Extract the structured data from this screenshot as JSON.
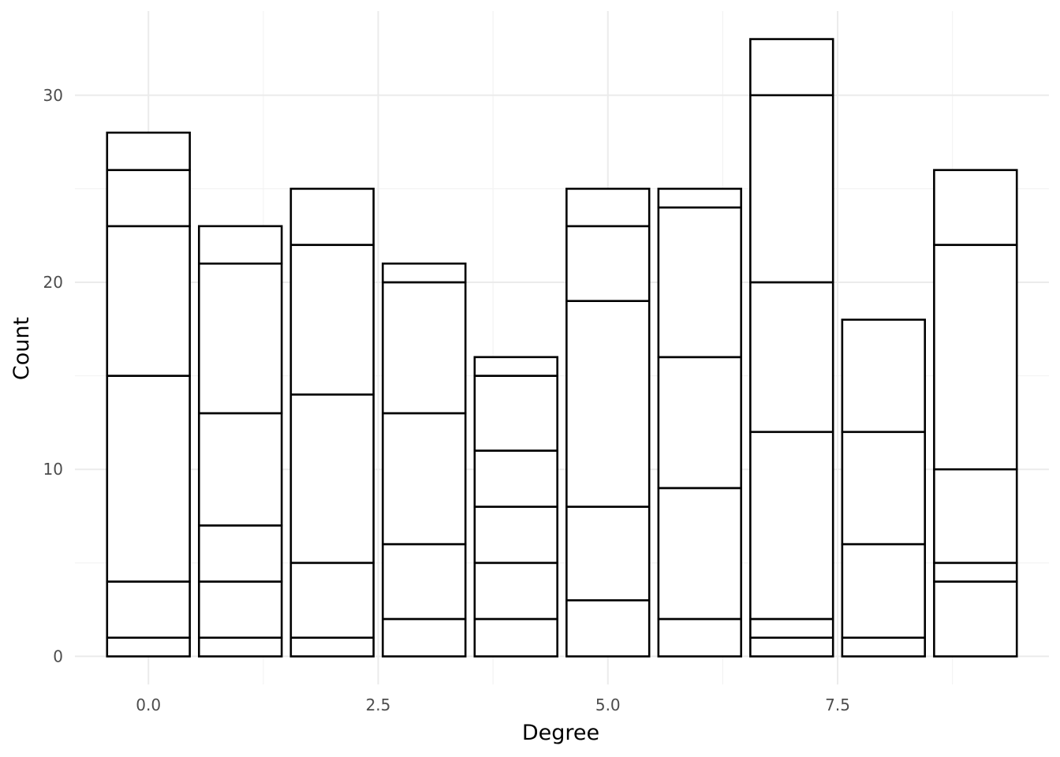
{
  "chart_data": {
    "type": "bar",
    "stacked": true,
    "xlabel": "Degree",
    "ylabel": "Count",
    "xlim": [
      -0.8,
      9.8
    ],
    "ylim": [
      -1.5,
      34.5
    ],
    "x_ticks": [
      {
        "value": 0,
        "label": "0.0"
      },
      {
        "value": 2.5,
        "label": "2.5"
      },
      {
        "value": 5,
        "label": "5.0"
      },
      {
        "value": 7.5,
        "label": "7.5"
      }
    ],
    "y_ticks": [
      {
        "value": 0,
        "label": "0"
      },
      {
        "value": 10,
        "label": "10"
      },
      {
        "value": 20,
        "label": "20"
      },
      {
        "value": 30,
        "label": "30"
      }
    ],
    "grid": true,
    "bar_fill": "#ffffff",
    "bar_stroke": "#000000",
    "bars": [
      {
        "x": 0,
        "total": 28,
        "boundaries": [
          0,
          1,
          4,
          15,
          23,
          26,
          28
        ]
      },
      {
        "x": 1,
        "total": 23,
        "boundaries": [
          0,
          1,
          4,
          7,
          13,
          21,
          23
        ]
      },
      {
        "x": 2,
        "total": 25,
        "boundaries": [
          0,
          1,
          5,
          14,
          22,
          25
        ]
      },
      {
        "x": 3,
        "total": 21,
        "boundaries": [
          0,
          2,
          6,
          13,
          20,
          21
        ]
      },
      {
        "x": 4,
        "total": 16,
        "boundaries": [
          0,
          2,
          5,
          8,
          11,
          15,
          16
        ]
      },
      {
        "x": 5,
        "total": 25,
        "boundaries": [
          0,
          3,
          8,
          19,
          23,
          25
        ]
      },
      {
        "x": 6,
        "total": 25,
        "boundaries": [
          0,
          2,
          9,
          16,
          24,
          25
        ]
      },
      {
        "x": 7,
        "total": 33,
        "boundaries": [
          0,
          1,
          2,
          12,
          20,
          30,
          33
        ]
      },
      {
        "x": 8,
        "total": 18,
        "boundaries": [
          0,
          1,
          6,
          12,
          18
        ]
      },
      {
        "x": 9,
        "total": 26,
        "boundaries": [
          0,
          4,
          5,
          10,
          22,
          26
        ]
      }
    ]
  }
}
